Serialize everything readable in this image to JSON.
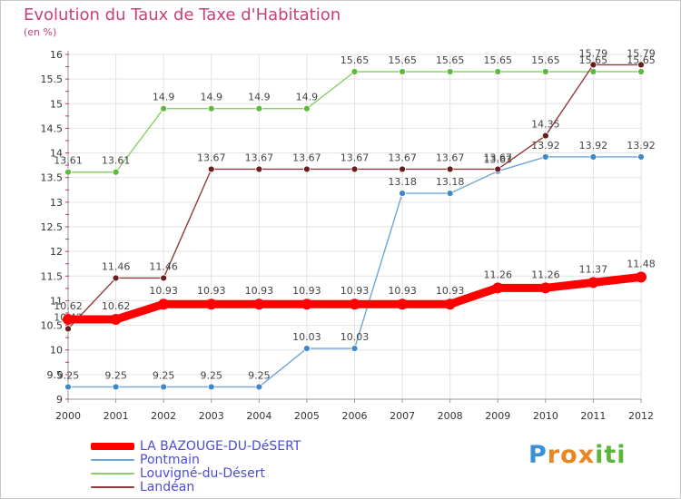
{
  "chart_data": {
    "type": "line",
    "title": "Evolution du Taux de Taxe d'Habitation",
    "ylabel": "(en %)",
    "xlabel": "",
    "ylim": [
      9,
      16
    ],
    "y_ticks": [
      "9",
      "9.5",
      "10",
      "10.5",
      "11",
      "11.5",
      "12",
      "12.5",
      "13",
      "13.5",
      "14",
      "14.5",
      "15",
      "15.5",
      "16"
    ],
    "categories": [
      "2000",
      "2001",
      "2002",
      "2003",
      "2004",
      "2005",
      "2006",
      "2007",
      "2008",
      "2009",
      "2010",
      "2011",
      "2012"
    ],
    "grid": true,
    "series": [
      {
        "name": "Louvigné-du-Désert",
        "color": "#88d066",
        "marker": "#5dbb3b",
        "width": "thin",
        "values": [
          13.61,
          13.61,
          14.9,
          14.9,
          14.9,
          14.9,
          15.65,
          15.65,
          15.65,
          15.65,
          15.65,
          15.65,
          15.65
        ],
        "labels": [
          "13.61",
          "13.61",
          "14.9",
          "14.9",
          "14.9",
          "14.9",
          "15.65",
          "15.65",
          "15.65",
          "15.65",
          "15.65",
          "15.65",
          "15.65"
        ]
      },
      {
        "name": "Pontmain",
        "color": "#6ea6d6",
        "marker": "#3f88c8",
        "width": "thin",
        "values": [
          9.25,
          9.25,
          9.25,
          9.25,
          9.25,
          10.03,
          10.03,
          13.18,
          13.18,
          13.63,
          13.92,
          13.92,
          13.92
        ],
        "labels": [
          "9.25",
          "9.25",
          "9.25",
          "9.25",
          "9.25",
          "10.03",
          "10.03",
          "13.18",
          "13.18",
          "13.63",
          "13.92",
          "13.92",
          "13.92"
        ]
      },
      {
        "name": "Landéan",
        "color": "#8c3c3c",
        "marker": "#6a1d1d",
        "width": "thin",
        "values": [
          10.43,
          11.46,
          11.46,
          13.67,
          13.67,
          13.67,
          13.67,
          13.67,
          13.67,
          13.67,
          14.35,
          15.79,
          15.79
        ],
        "labels": [
          "10.43",
          "11.46",
          "11.46",
          "13.67",
          "13.67",
          "13.67",
          "13.67",
          "13.67",
          "13.67",
          "13.67",
          "14.35",
          "15.79",
          "15.79"
        ]
      },
      {
        "name": "LA BAZOUGE-DU-DéSERT",
        "color": "#ff0000",
        "marker": "#ff0000",
        "width": "thick",
        "values": [
          10.62,
          10.62,
          10.93,
          10.93,
          10.93,
          10.93,
          10.93,
          10.93,
          10.93,
          11.26,
          11.26,
          11.37,
          11.48
        ],
        "labels": [
          "10.62",
          "10.62",
          "10.93",
          "10.93",
          "10.93",
          "10.93",
          "10.93",
          "10.93",
          "10.93",
          "11.26",
          "11.26",
          "11.37",
          "11.48"
        ]
      }
    ],
    "legend": {
      "position": "bottom-left",
      "items": [
        "LA BAZOUGE-DU-DéSERT",
        "Pontmain",
        "Louvigné-du-Désert",
        "Landéan"
      ]
    }
  },
  "logo": {
    "letters": [
      "P",
      "r",
      "o",
      "x",
      "i",
      "t",
      "i"
    ]
  }
}
